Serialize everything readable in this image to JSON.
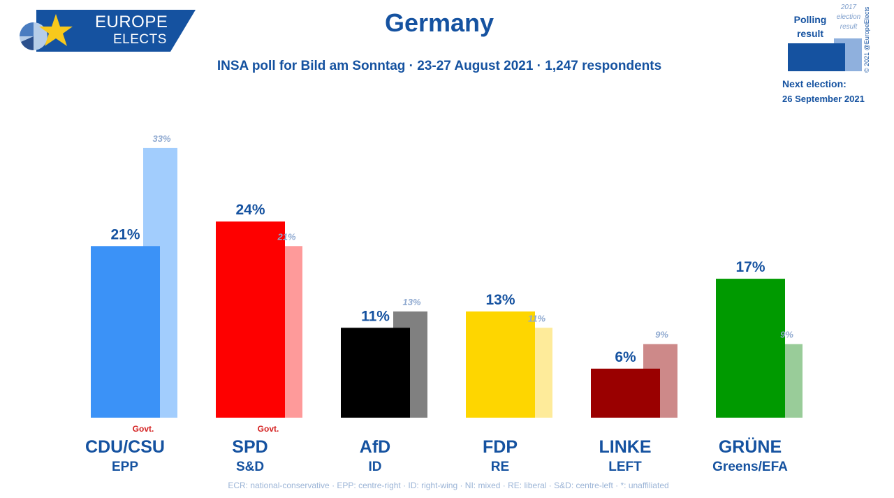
{
  "logo": {
    "line1": "EUROPE",
    "line2": "ELECTS"
  },
  "title": "Germany",
  "subtitle": "INSA poll for Bild am Sonntag · 23-27 August 2021 · 1,247 respondents",
  "key": {
    "polling": "Polling result",
    "previous": "2017 election result",
    "copyright": "© 2021 @EuropeElects",
    "next_election_label": "Next election:",
    "next_election_date": "26 September 2021"
  },
  "chart_data": {
    "type": "bar",
    "categories": [
      "CDU/CSU",
      "SPD",
      "AfD",
      "FDP",
      "LINKE",
      "GRÜNE"
    ],
    "groups": [
      "EPP",
      "S&D",
      "ID",
      "RE",
      "LEFT",
      "Greens/EFA"
    ],
    "series": [
      {
        "values": [
          21,
          24,
          11,
          13,
          6,
          17
        ]
      },
      {
        "values": [
          33,
          21,
          13,
          11,
          9,
          9
        ]
      }
    ],
    "value_labels": [
      "21%",
      "24%",
      "11%",
      "13%",
      "6%",
      "17%"
    ],
    "previous_labels": [
      "33%",
      "21%",
      "13%",
      "11%",
      "9%",
      "9%"
    ],
    "colors": [
      "#3b92f7",
      "#fe0000",
      "#000000",
      "#fed600",
      "#9a0000",
      "#009a00"
    ],
    "previous_colors": [
      "#a2cdfd",
      "#fe9a9a",
      "#808080",
      "#feeb9a",
      "#cd8989",
      "#99cc99"
    ],
    "government": [
      "Govt.",
      "Govt.",
      "",
      "",
      "",
      ""
    ],
    "ylim": [
      0,
      35
    ],
    "grid": false,
    "title": "Germany",
    "xlabel": "",
    "ylabel": ""
  },
  "footnote": "ECR: national-conservative · EPP: centre-right · ID: right-wing · NI: mixed · RE: liberal · S&D: centre-left · *: unaffiliated"
}
